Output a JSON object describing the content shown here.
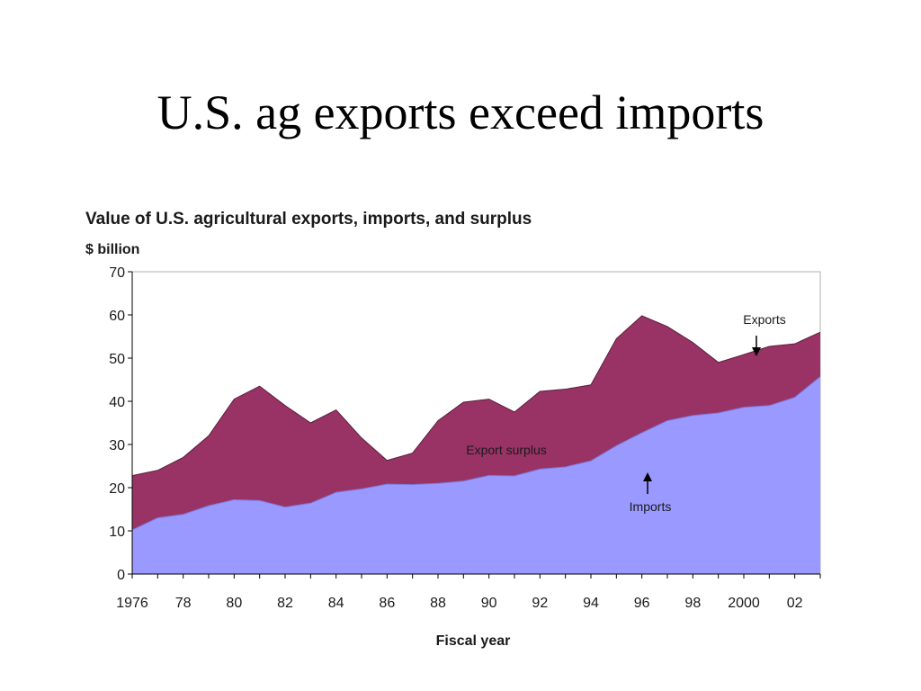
{
  "slide": {
    "title": "U.S. ag exports exceed imports"
  },
  "chart_data": {
    "type": "area",
    "title": "Value of U.S. agricultural exports, imports, and surplus",
    "ylabel": "$ billion",
    "xlabel": "Fiscal year",
    "ylim": [
      0,
      70
    ],
    "xlim": [
      1976,
      2003
    ],
    "yticks": [
      0,
      10,
      20,
      30,
      40,
      50,
      60,
      70
    ],
    "xticks": [
      {
        "value": 1976,
        "label": "1976"
      },
      {
        "value": 1978,
        "label": "78"
      },
      {
        "value": 1980,
        "label": "80"
      },
      {
        "value": 1982,
        "label": "82"
      },
      {
        "value": 1984,
        "label": "84"
      },
      {
        "value": 1986,
        "label": "86"
      },
      {
        "value": 1988,
        "label": "88"
      },
      {
        "value": 1990,
        "label": "90"
      },
      {
        "value": 1992,
        "label": "92"
      },
      {
        "value": 1994,
        "label": "94"
      },
      {
        "value": 1996,
        "label": "96"
      },
      {
        "value": 1998,
        "label": "98"
      },
      {
        "value": 2000,
        "label": "2000"
      },
      {
        "value": 2002,
        "label": "02"
      }
    ],
    "x": [
      1976,
      1977,
      1978,
      1979,
      1980,
      1981,
      1982,
      1983,
      1984,
      1985,
      1986,
      1987,
      1988,
      1989,
      1990,
      1991,
      1992,
      1993,
      1994,
      1995,
      1996,
      1997,
      1998,
      1999,
      2000,
      2001,
      2002,
      2003
    ],
    "series": [
      {
        "name": "Exports",
        "color": "#993366",
        "values": [
          22.8,
          24.0,
          27.0,
          32.0,
          40.5,
          43.5,
          39.0,
          35.0,
          38.0,
          31.5,
          26.3,
          28.0,
          35.5,
          39.8,
          40.5,
          37.5,
          42.3,
          42.8,
          43.8,
          54.5,
          59.8,
          57.3,
          53.6,
          49.0,
          50.8,
          52.7,
          53.3,
          56.0
        ]
      },
      {
        "name": "Imports",
        "color": "#9999ff",
        "values": [
          10.2,
          13.0,
          13.8,
          15.8,
          17.2,
          17.0,
          15.5,
          16.4,
          18.9,
          19.7,
          20.8,
          20.7,
          21.0,
          21.5,
          22.8,
          22.7,
          24.3,
          24.8,
          26.2,
          29.7,
          32.7,
          35.5,
          36.7,
          37.3,
          38.6,
          39.0,
          40.9,
          45.7
        ]
      }
    ],
    "annotations": [
      {
        "text": "Export surplus"
      },
      {
        "text": "Exports"
      },
      {
        "text": "Imports"
      }
    ]
  }
}
